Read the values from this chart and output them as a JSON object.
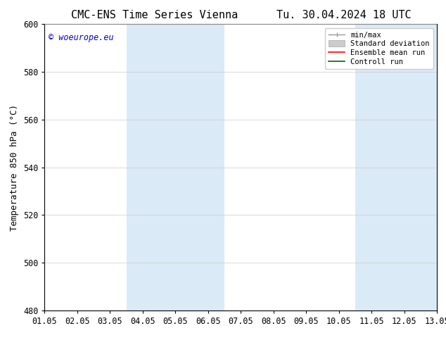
{
  "title_left": "CMC-ENS Time Series Vienna",
  "title_right": "Tu. 30.04.2024 18 UTC",
  "ylabel": "Temperature 850 hPa (°C)",
  "xlim_dates": [
    "01.05",
    "02.05",
    "03.05",
    "04.05",
    "05.05",
    "06.05",
    "07.05",
    "08.05",
    "09.05",
    "10.05",
    "11.05",
    "12.05",
    "13.05"
  ],
  "ylim": [
    480,
    600
  ],
  "yticks": [
    480,
    500,
    520,
    540,
    560,
    580,
    600
  ],
  "shaded_color": "#daeaf7",
  "watermark_text": "© woeurope.eu",
  "watermark_color": "#0000cc",
  "legend_entries": [
    {
      "label": "min/max"
    },
    {
      "label": "Standard deviation"
    },
    {
      "label": "Ensemble mean run"
    },
    {
      "label": "Controll run"
    }
  ],
  "legend_colors": [
    "#999999",
    "#cccccc",
    "#ff0000",
    "#006600"
  ],
  "background_color": "#ffffff",
  "grid_color": "#cccccc",
  "border_color": "#000000",
  "title_fontsize": 11,
  "label_fontsize": 9,
  "tick_fontsize": 8.5
}
